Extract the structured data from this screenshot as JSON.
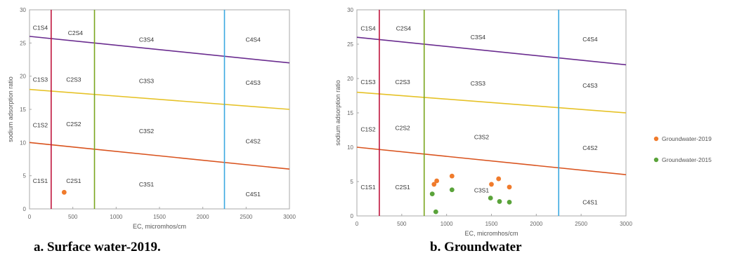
{
  "captions": [
    "a. Surface water-2019.",
    "b. Groundwater"
  ],
  "colors": {
    "c1_boundary": "#c0143c",
    "c2_boundary": "#7aa61e",
    "c3_boundary": "#3aa8e0",
    "s4_line": "#6a2c8f",
    "s3_line": "#e6c227",
    "s2_line": "#d9531e",
    "gw2019": "#f07b2c",
    "gw2015": "#5aa33a"
  },
  "chart_data": [
    {
      "type": "scatter",
      "xlabel": "EC, micromhos/cm",
      "ylabel": "sodium adsorption ratio",
      "xlim": [
        0,
        3000
      ],
      "ylim": [
        0,
        30
      ],
      "xticks": [
        "0",
        "500",
        "1000",
        "1500",
        "2000",
        "2500",
        "3000"
      ],
      "yticks": [
        "0",
        "5",
        "10",
        "15",
        "20",
        "25",
        "30"
      ],
      "grid": false,
      "boundaries": {
        "ec_vertical": [
          250,
          750,
          2250
        ],
        "sar_lines": [
          {
            "name": "S4",
            "points": [
              [
                0,
                26
              ],
              [
                3000,
                22
              ]
            ]
          },
          {
            "name": "S3",
            "points": [
              [
                0,
                18
              ],
              [
                3000,
                15
              ]
            ]
          },
          {
            "name": "S2",
            "points": [
              [
                0,
                10
              ],
              [
                3000,
                6
              ]
            ]
          }
        ]
      },
      "zone_labels": [
        {
          "text": "C1S4",
          "x": 125,
          "y": 27.3
        },
        {
          "text": "C2S4",
          "x": 530,
          "y": 26.5
        },
        {
          "text": "C3S4",
          "x": 1350,
          "y": 25.5
        },
        {
          "text": "C4S4",
          "x": 2580,
          "y": 25.5
        },
        {
          "text": "C1S3",
          "x": 125,
          "y": 19.5
        },
        {
          "text": "C2S3",
          "x": 510,
          "y": 19.5
        },
        {
          "text": "C3S3",
          "x": 1350,
          "y": 19.3
        },
        {
          "text": "C4S3",
          "x": 2580,
          "y": 19.0
        },
        {
          "text": "C1S2",
          "x": 125,
          "y": 12.6
        },
        {
          "text": "C2S2",
          "x": 510,
          "y": 12.8
        },
        {
          "text": "C3S2",
          "x": 1350,
          "y": 11.7
        },
        {
          "text": "C4S2",
          "x": 2580,
          "y": 10.2
        },
        {
          "text": "C1S1",
          "x": 125,
          "y": 4.2
        },
        {
          "text": "C2S1",
          "x": 510,
          "y": 4.2
        },
        {
          "text": "C3S1",
          "x": 1350,
          "y": 3.7
        },
        {
          "text": "C4S1",
          "x": 2580,
          "y": 2.2
        }
      ],
      "series": [
        {
          "color_key": "gw2019",
          "points": [
            [
              400,
              2.5
            ]
          ]
        }
      ]
    },
    {
      "type": "scatter",
      "xlabel": "EC, micromhos/cm",
      "ylabel": "sodium adsorption ratio",
      "xlim": [
        0,
        3000
      ],
      "ylim": [
        0,
        30
      ],
      "xticks": [
        "0",
        "500",
        "1000",
        "1500",
        "2000",
        "2500",
        "3000"
      ],
      "yticks": [
        "0",
        "5",
        "10",
        "15",
        "20",
        "25",
        "30"
      ],
      "grid": false,
      "legend_position": "right",
      "boundaries": {
        "ec_vertical": [
          250,
          750,
          2250
        ],
        "sar_lines": [
          {
            "name": "S4",
            "points": [
              [
                0,
                26
              ],
              [
                3000,
                22
              ]
            ]
          },
          {
            "name": "S3",
            "points": [
              [
                0,
                18
              ],
              [
                3000,
                15
              ]
            ]
          },
          {
            "name": "S2",
            "points": [
              [
                0,
                10
              ],
              [
                3000,
                6
              ]
            ]
          }
        ]
      },
      "zone_labels": [
        {
          "text": "C1S4",
          "x": 125,
          "y": 27.3
        },
        {
          "text": "C2S4",
          "x": 520,
          "y": 27.3
        },
        {
          "text": "C3S4",
          "x": 1350,
          "y": 26.0
        },
        {
          "text": "C4S4",
          "x": 2600,
          "y": 25.7
        },
        {
          "text": "C1S3",
          "x": 125,
          "y": 19.5
        },
        {
          "text": "C2S3",
          "x": 510,
          "y": 19.5
        },
        {
          "text": "C3S3",
          "x": 1350,
          "y": 19.3
        },
        {
          "text": "C4S3",
          "x": 2600,
          "y": 19.0
        },
        {
          "text": "C1S2",
          "x": 125,
          "y": 12.6
        },
        {
          "text": "C2S2",
          "x": 510,
          "y": 12.8
        },
        {
          "text": "C3S2",
          "x": 1390,
          "y": 11.5
        },
        {
          "text": "C4S2",
          "x": 2600,
          "y": 9.9
        },
        {
          "text": "C1S1",
          "x": 125,
          "y": 4.2
        },
        {
          "text": "C2S1",
          "x": 510,
          "y": 4.2
        },
        {
          "text": "C3S1",
          "x": 1390,
          "y": 3.7
        },
        {
          "text": "C4S1",
          "x": 2600,
          "y": 2.0
        }
      ],
      "series": [
        {
          "name": "Groundwater-2019",
          "color_key": "gw2019",
          "points": [
            [
              860,
              4.6
            ],
            [
              890,
              5.1
            ],
            [
              1060,
              5.8
            ],
            [
              1500,
              4.6
            ],
            [
              1580,
              5.4
            ],
            [
              1700,
              4.2
            ]
          ]
        },
        {
          "name": "Groundwater-2015",
          "color_key": "gw2015",
          "points": [
            [
              840,
              3.2
            ],
            [
              1060,
              3.8
            ],
            [
              1490,
              2.6
            ],
            [
              1590,
              2.1
            ],
            [
              1700,
              2.0
            ],
            [
              880,
              0.6
            ]
          ]
        }
      ]
    }
  ]
}
